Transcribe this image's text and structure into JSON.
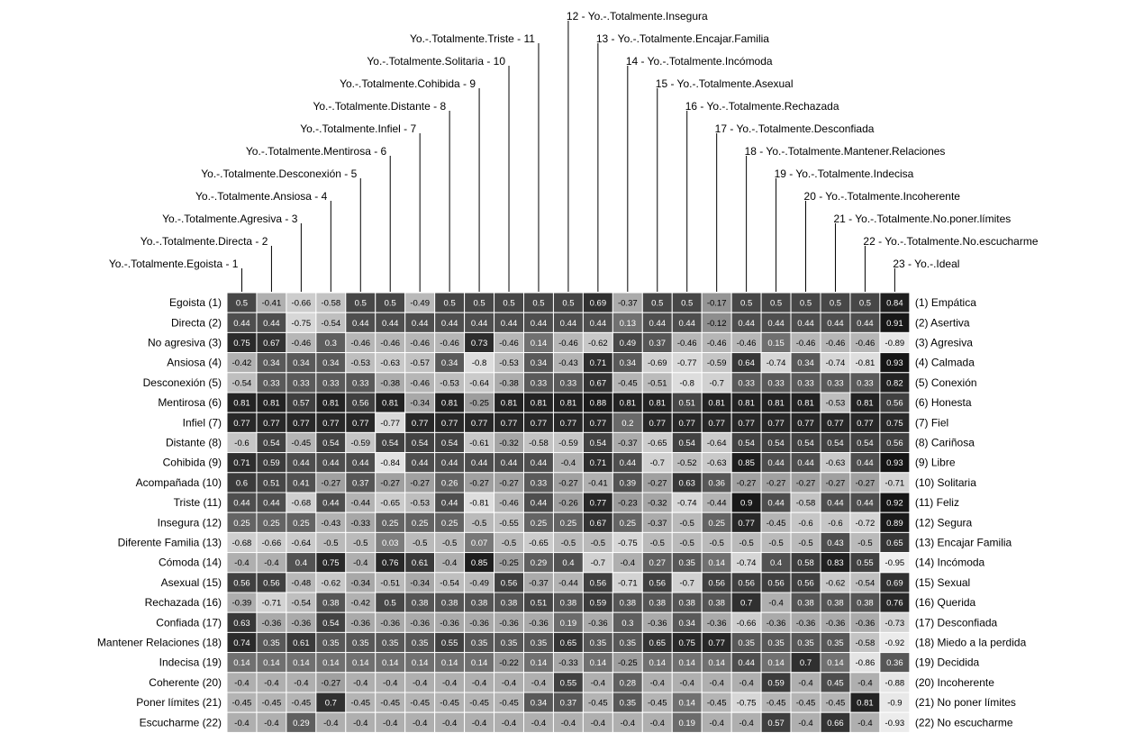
{
  "chart_data": {
    "type": "heatmap",
    "title": "",
    "columns": [
      "Yo.-.Totalmente.Egoista - 1",
      "Yo.-.Totalmente.Directa - 2",
      "Yo.-.Totalmente.Agresiva - 3",
      "Yo.-.Totalmente.Ansiosa - 4",
      "Yo.-.Totalmente.Desconexión - 5",
      "Yo.-.Totalmente.Mentirosa - 6",
      "Yo.-.Totalmente.Infiel - 7",
      "Yo.-.Totalmente.Distante - 8",
      "Yo.-.Totalmente.Cohibida - 9",
      "Yo.-.Totalmente.Solitaria - 10",
      "Yo.-.Totalmente.Triste - 11",
      "12 - Yo.-.Totalmente.Insegura",
      "13 - Yo.-.Totalmente.Encajar.Familia",
      "14 - Yo.-.Totalmente.Incómoda",
      "15 - Yo.-.Totalmente.Asexual",
      "16 - Yo.-.Totalmente.Rechazada",
      "17 - Yo.-.Totalmente.Desconfiada",
      "18 - Yo.-.Totalmente.Mantener.Relaciones",
      "19 - Yo.-.Totalmente.Indecisa",
      "20 - Yo.-.Totalmente.Incoherente",
      "21 - Yo.-.Totalmente.No.poner.límites",
      "22 - Yo.-.Totalmente.No.escucharme",
      "23 - Yo.-.Ideal"
    ],
    "rows_left": [
      "Egoista  (1)",
      "Directa  (2)",
      "No agresiva  (3)",
      "Ansiosa  (4)",
      "Desconexión  (5)",
      "Mentirosa  (6)",
      "Infiel  (7)",
      "Distante  (8)",
      "Cohibida  (9)",
      "Acompañada  (10)",
      "Triste  (11)",
      "Insegura  (12)",
      "Diferente Familia  (13)",
      "Cómoda  (14)",
      "Asexual  (15)",
      "Rechazada  (16)",
      "Confiada  (17)",
      "Mantener Relaciones  (18)",
      "Indecisa  (19)",
      "Coherente  (20)",
      "Poner límites  (21)",
      "Escucharme  (22)"
    ],
    "rows_right": [
      "(1)  Empática",
      "(2)  Asertiva",
      "(3)  Agresiva",
      "(4)  Calmada",
      "(5)  Conexión",
      "(6)  Honesta",
      "(7)  Fiel",
      "(8)  Cariñosa",
      "(9)  Libre",
      "(10)  Solitaria",
      "(11)  Feliz",
      "(12)  Segura",
      "(13)  Encajar Familia",
      "(14)  Incómoda",
      "(15)  Sexual",
      "(16)  Querida",
      "(17)  Desconfiada",
      "(18)  Miedo a la perdida",
      "(19)  Decidida",
      "(20)  Incoherente",
      "(21)  No poner límites",
      "(22)  No escucharme"
    ],
    "values": [
      [
        0.5,
        -0.41,
        -0.66,
        -0.58,
        0.5,
        0.5,
        -0.49,
        0.5,
        0.5,
        0.5,
        0.5,
        0.5,
        0.69,
        -0.37,
        0.5,
        0.5,
        -0.17,
        0.5,
        0.5,
        0.5,
        0.5,
        0.5,
        0.84
      ],
      [
        0.44,
        0.44,
        -0.75,
        -0.54,
        0.44,
        0.44,
        0.44,
        0.44,
        0.44,
        0.44,
        0.44,
        0.44,
        0.44,
        0.13,
        0.44,
        0.44,
        -0.12,
        0.44,
        0.44,
        0.44,
        0.44,
        0.44,
        0.91
      ],
      [
        0.75,
        0.67,
        -0.46,
        0.3,
        -0.46,
        -0.46,
        -0.46,
        -0.46,
        0.73,
        -0.46,
        0.14,
        -0.46,
        -0.62,
        0.49,
        0.37,
        -0.46,
        -0.46,
        -0.46,
        0.15,
        -0.46,
        -0.46,
        -0.46,
        -0.89
      ],
      [
        -0.42,
        0.34,
        0.34,
        0.34,
        -0.53,
        -0.63,
        -0.57,
        0.34,
        -0.8,
        -0.53,
        0.34,
        -0.43,
        0.71,
        0.34,
        -0.69,
        -0.77,
        -0.59,
        0.64,
        -0.74,
        0.34,
        -0.74,
        -0.81,
        0.93
      ],
      [
        -0.54,
        0.33,
        0.33,
        0.33,
        0.33,
        -0.38,
        -0.46,
        -0.53,
        -0.64,
        -0.38,
        0.33,
        0.33,
        0.67,
        -0.45,
        -0.51,
        -0.8,
        -0.7,
        0.33,
        0.33,
        0.33,
        0.33,
        0.33,
        0.82
      ],
      [
        0.81,
        0.81,
        0.57,
        0.81,
        0.56,
        0.81,
        -0.34,
        0.81,
        -0.25,
        0.81,
        0.81,
        0.81,
        0.88,
        0.81,
        0.81,
        0.51,
        0.81,
        0.81,
        0.81,
        0.81,
        -0.53,
        0.81,
        0.56
      ],
      [
        0.77,
        0.77,
        0.77,
        0.77,
        0.77,
        -0.77,
        0.77,
        0.77,
        0.77,
        0.77,
        0.77,
        0.77,
        0.77,
        0.2,
        0.77,
        0.77,
        0.77,
        0.77,
        0.77,
        0.77,
        0.77,
        0.77,
        0.75
      ],
      [
        -0.6,
        0.54,
        -0.45,
        0.54,
        -0.59,
        0.54,
        0.54,
        0.54,
        -0.61,
        -0.32,
        -0.58,
        -0.59,
        0.54,
        -0.37,
        -0.65,
        0.54,
        -0.64,
        0.54,
        0.54,
        0.54,
        0.54,
        0.54,
        0.56
      ],
      [
        0.71,
        0.59,
        0.44,
        0.44,
        0.44,
        -0.84,
        0.44,
        0.44,
        0.44,
        0.44,
        0.44,
        -0.4,
        0.71,
        0.44,
        -0.7,
        -0.52,
        -0.63,
        0.85,
        0.44,
        0.44,
        -0.63,
        0.44,
        0.93
      ],
      [
        0.6,
        0.51,
        0.41,
        -0.27,
        0.37,
        -0.27,
        -0.27,
        0.26,
        -0.27,
        -0.27,
        0.33,
        -0.27,
        -0.41,
        0.39,
        -0.27,
        0.63,
        0.36,
        -0.27,
        -0.27,
        -0.27,
        -0.27,
        -0.27,
        -0.71
      ],
      [
        0.44,
        0.44,
        -0.68,
        0.44,
        -0.44,
        -0.65,
        -0.53,
        0.44,
        -0.81,
        -0.46,
        0.44,
        -0.26,
        0.77,
        -0.23,
        -0.32,
        -0.74,
        -0.44,
        0.9,
        0.44,
        -0.58,
        0.44,
        0.44,
        0.92
      ],
      [
        0.25,
        0.25,
        0.25,
        -0.43,
        -0.33,
        0.25,
        0.25,
        0.25,
        -0.5,
        -0.55,
        0.25,
        0.25,
        0.67,
        0.25,
        -0.37,
        -0.5,
        0.25,
        0.77,
        -0.45,
        -0.6,
        -0.6,
        -0.72,
        0.89
      ],
      [
        -0.68,
        -0.66,
        -0.64,
        -0.5,
        -0.5,
        0.03,
        -0.5,
        -0.5,
        0.07,
        -0.5,
        -0.65,
        -0.5,
        -0.5,
        -0.75,
        -0.5,
        -0.5,
        -0.5,
        -0.5,
        -0.5,
        -0.5,
        0.43,
        -0.5,
        0.65
      ],
      [
        -0.4,
        -0.4,
        0.4,
        0.75,
        -0.4,
        0.76,
        0.61,
        -0.4,
        0.85,
        -0.25,
        0.29,
        0.4,
        -0.7,
        -0.4,
        0.27,
        0.35,
        0.14,
        -0.74,
        0.4,
        0.58,
        0.83,
        0.55,
        -0.95
      ],
      [
        0.56,
        0.56,
        -0.48,
        -0.62,
        -0.34,
        -0.51,
        -0.34,
        -0.54,
        -0.49,
        0.56,
        -0.37,
        -0.44,
        0.56,
        -0.71,
        0.56,
        -0.7,
        0.56,
        0.56,
        0.56,
        0.56,
        -0.62,
        -0.54,
        0.69
      ],
      [
        -0.39,
        -0.71,
        -0.54,
        0.38,
        -0.42,
        0.5,
        0.38,
        0.38,
        0.38,
        0.38,
        0.51,
        0.38,
        0.59,
        0.38,
        0.38,
        0.38,
        0.38,
        0.7,
        -0.4,
        0.38,
        0.38,
        0.38,
        0.76
      ],
      [
        0.63,
        -0.36,
        -0.36,
        0.54,
        -0.36,
        -0.36,
        -0.36,
        -0.36,
        -0.36,
        -0.36,
        -0.36,
        0.19,
        -0.36,
        0.3,
        -0.36,
        0.34,
        -0.36,
        -0.66,
        -0.36,
        -0.36,
        -0.36,
        -0.36,
        -0.73
      ],
      [
        0.74,
        0.35,
        0.61,
        0.35,
        0.35,
        0.35,
        0.35,
        0.55,
        0.35,
        0.35,
        0.35,
        0.65,
        0.35,
        0.35,
        0.65,
        0.75,
        0.77,
        0.35,
        0.35,
        0.35,
        0.35,
        -0.58,
        -0.92
      ],
      [
        0.14,
        0.14,
        0.14,
        0.14,
        0.14,
        0.14,
        0.14,
        0.14,
        0.14,
        -0.22,
        0.14,
        -0.33,
        0.14,
        -0.25,
        0.14,
        0.14,
        0.14,
        0.44,
        0.14,
        0.7,
        0.14,
        -0.86,
        0.36
      ],
      [
        -0.4,
        -0.4,
        -0.4,
        -0.27,
        -0.4,
        -0.4,
        -0.4,
        -0.4,
        -0.4,
        -0.4,
        -0.4,
        0.55,
        -0.4,
        0.28,
        -0.4,
        -0.4,
        -0.4,
        -0.4,
        0.59,
        -0.4,
        0.45,
        -0.4,
        -0.88
      ],
      [
        -0.45,
        -0.45,
        -0.45,
        0.7,
        -0.45,
        -0.45,
        -0.45,
        -0.45,
        -0.45,
        -0.45,
        0.34,
        0.37,
        -0.45,
        0.35,
        -0.45,
        0.14,
        -0.45,
        -0.75,
        -0.45,
        -0.45,
        -0.45,
        0.81,
        -0.9
      ],
      [
        -0.4,
        -0.4,
        0.29,
        -0.4,
        -0.4,
        -0.4,
        -0.4,
        -0.4,
        -0.4,
        -0.4,
        -0.4,
        -0.4,
        -0.4,
        -0.4,
        -0.4,
        0.19,
        -0.4,
        -0.4,
        0.57,
        -0.4,
        0.66,
        -0.4,
        -0.93
      ]
    ],
    "color_scale": {
      "low": "#f4f4f4",
      "high": "#0d0d0d"
    },
    "grid": true,
    "legend": "none"
  }
}
